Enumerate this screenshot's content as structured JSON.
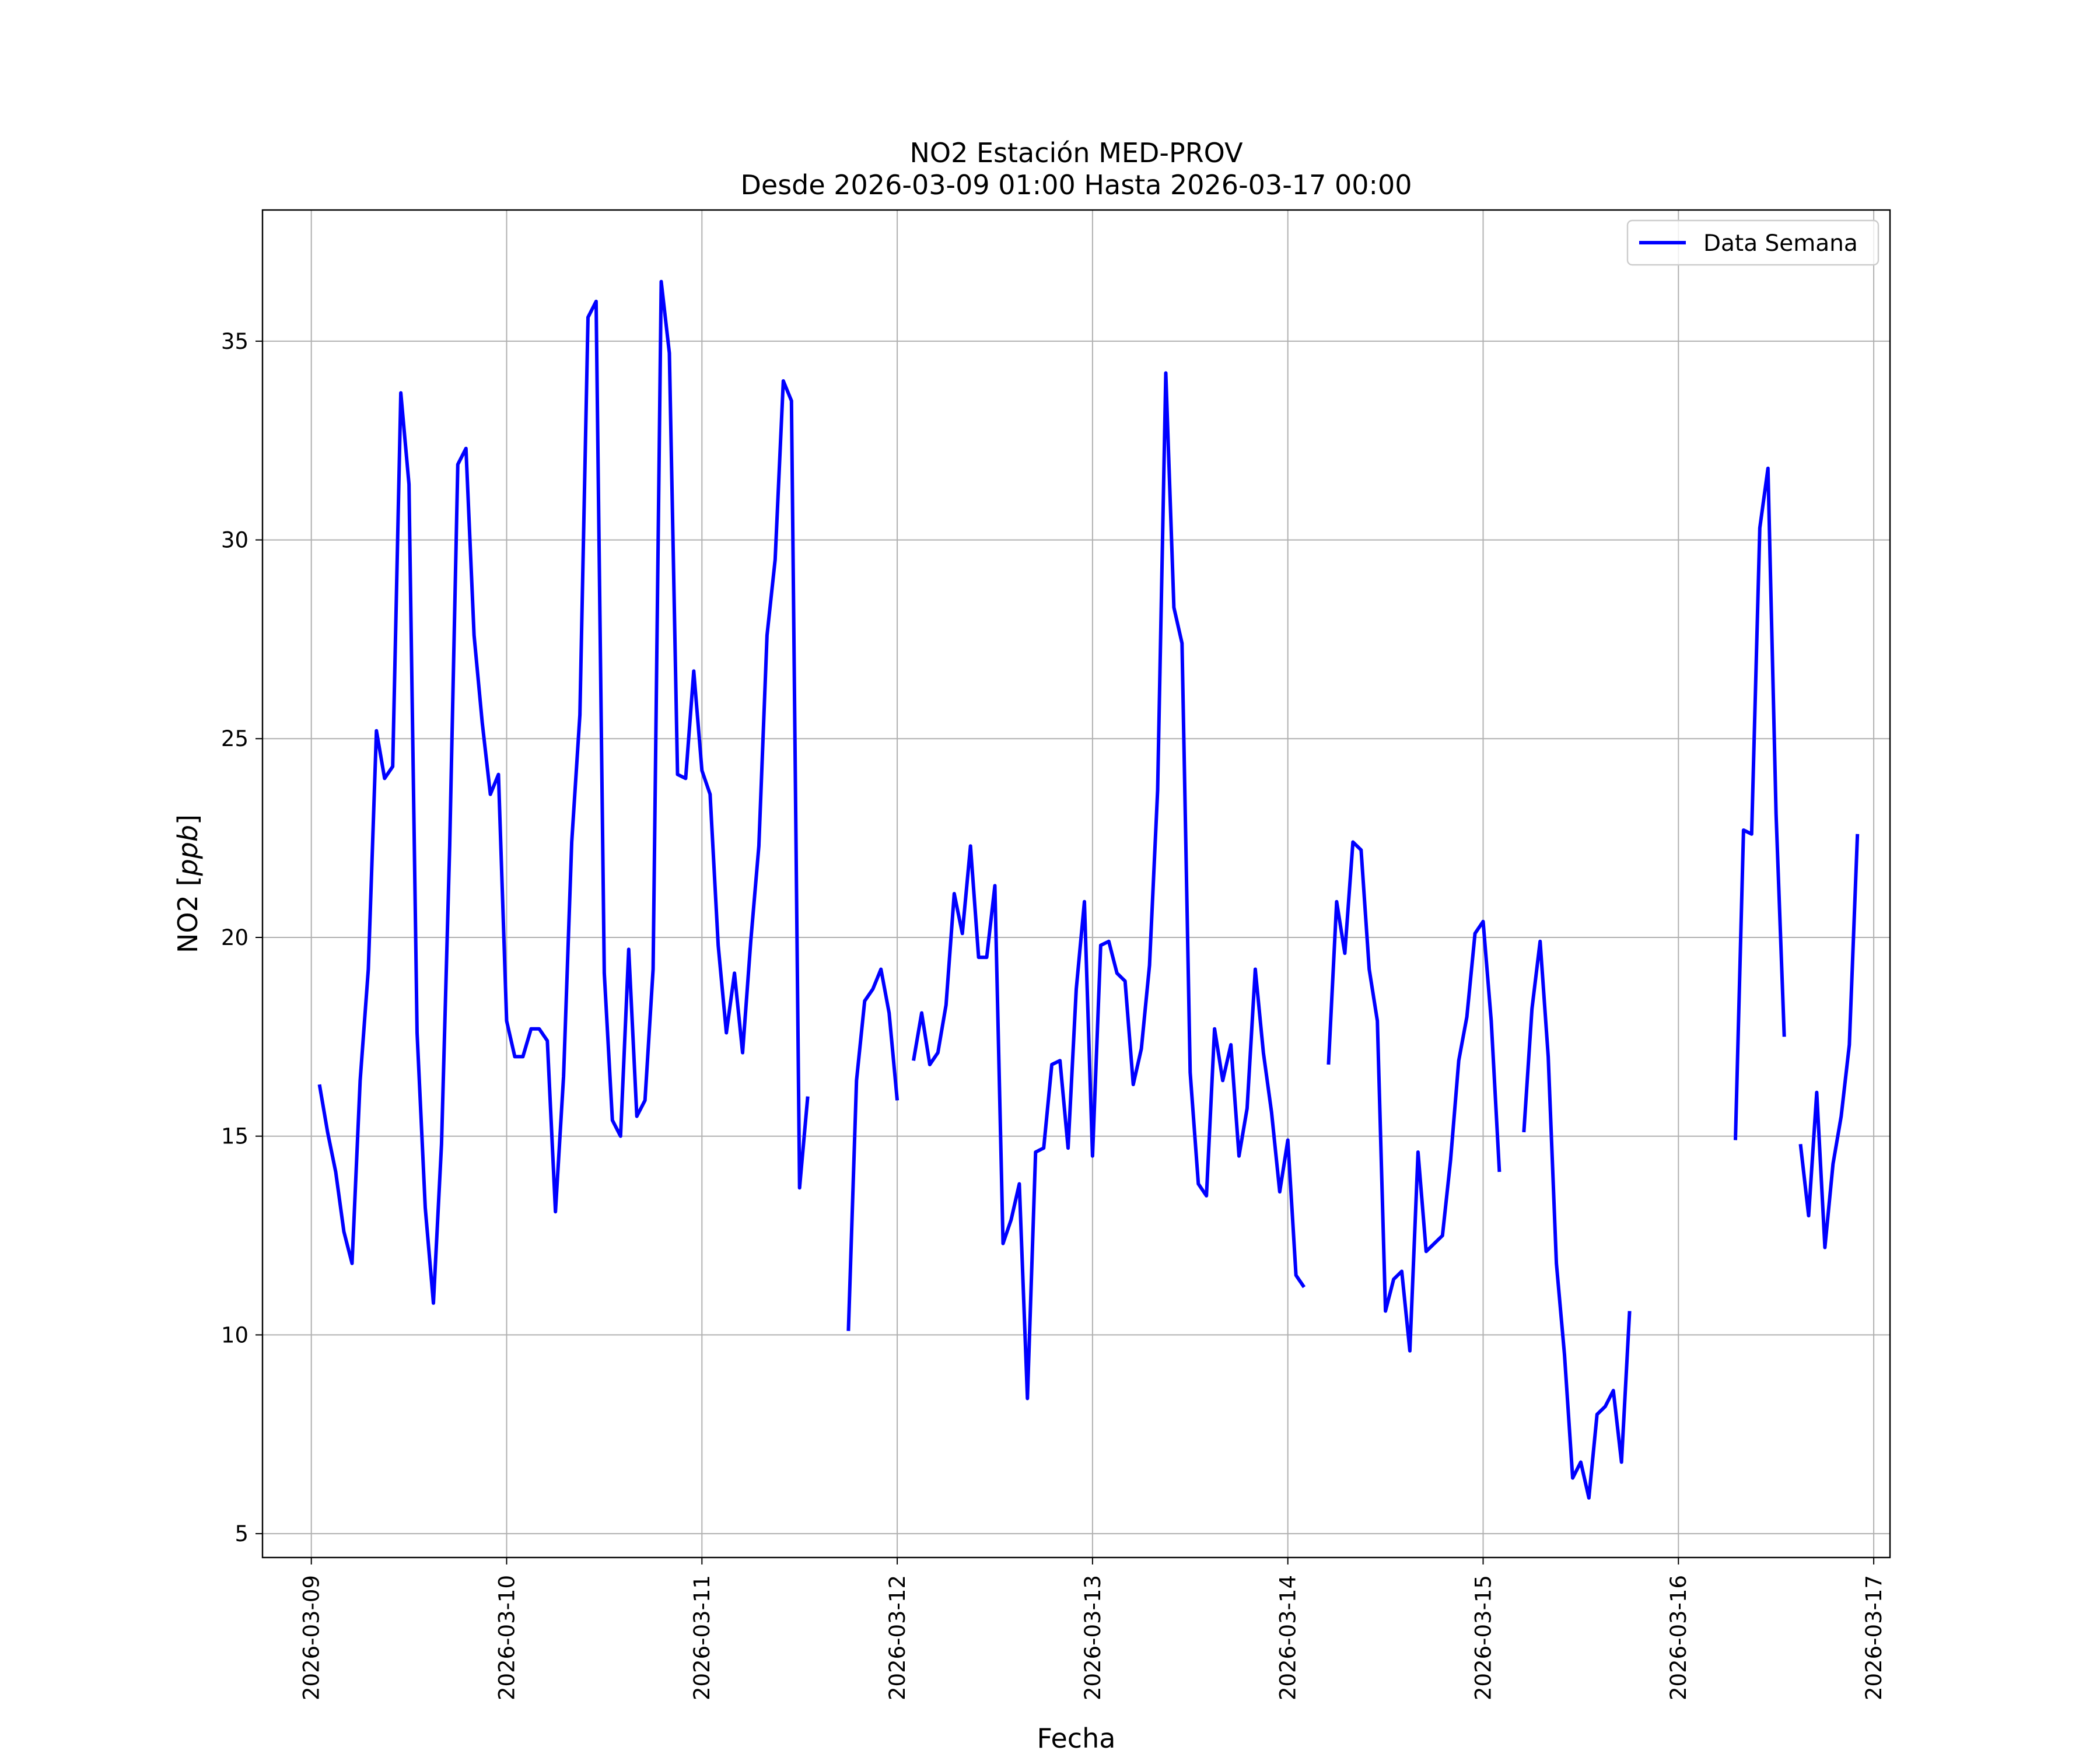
{
  "chart_data": {
    "type": "line",
    "title": "NO2 Estación MED-PROV",
    "subtitle": "Desde 2026-03-09 01:00 Hasta 2026-03-17 00:00",
    "xlabel": "Fecha",
    "ylabel": "NO2",
    "ylabel_unit": "ppb",
    "xlim": [
      "2026-03-08 18:00",
      "2026-03-17 02:00"
    ],
    "ylim": [
      4.4,
      38.3
    ],
    "x_ticks": [
      "2026-03-09",
      "2026-03-10",
      "2026-03-11",
      "2026-03-12",
      "2026-03-13",
      "2026-03-14",
      "2026-03-15",
      "2026-03-16",
      "2026-03-17"
    ],
    "y_ticks": [
      5,
      10,
      15,
      20,
      25,
      30,
      35
    ],
    "grid": true,
    "legend_position": "top-right",
    "series": [
      {
        "name": "Data Semana",
        "color": "#0000ff",
        "start": "2026-03-09 01:00",
        "step_hours": 1,
        "values": [
          16.3,
          15.1,
          14.1,
          12.6,
          11.8,
          16.4,
          19.2,
          25.2,
          24.0,
          24.3,
          33.7,
          31.4,
          17.6,
          13.2,
          10.8,
          14.8,
          22.3,
          31.9,
          32.3,
          27.6,
          25.4,
          23.6,
          24.1,
          17.9,
          17.0,
          17.0,
          17.7,
          17.7,
          17.4,
          13.1,
          16.5,
          22.4,
          25.6,
          35.6,
          36.0,
          19.1,
          15.4,
          15.0,
          19.7,
          15.5,
          15.9,
          19.2,
          36.5,
          34.7,
          24.1,
          24.0,
          26.7,
          24.2,
          23.6,
          19.8,
          17.6,
          19.1,
          17.1,
          19.9,
          22.3,
          27.6,
          29.5,
          34.0,
          33.5,
          13.7,
          16.0,
          null,
          null,
          null,
          null,
          10.1,
          16.4,
          18.4,
          18.7,
          19.2,
          18.1,
          15.9,
          null,
          16.9,
          18.1,
          16.8,
          17.1,
          18.3,
          21.1,
          20.1,
          22.3,
          19.5,
          19.5,
          21.3,
          12.3,
          12.9,
          13.8,
          8.4,
          14.6,
          14.7,
          16.8,
          16.9,
          14.7,
          18.7,
          20.9,
          14.5,
          19.8,
          19.9,
          19.1,
          18.9,
          16.3,
          17.2,
          19.3,
          23.7,
          34.2,
          28.3,
          27.4,
          16.6,
          13.8,
          13.5,
          17.7,
          16.4,
          17.3,
          14.5,
          15.7,
          19.2,
          17.1,
          15.6,
          13.6,
          14.9,
          11.5,
          11.2,
          null,
          null,
          16.8,
          20.9,
          19.6,
          22.4,
          22.2,
          19.2,
          17.9,
          10.6,
          11.4,
          11.6,
          9.6,
          14.6,
          12.1,
          12.3,
          12.5,
          14.4,
          16.9,
          18.0,
          20.1,
          20.4,
          17.9,
          14.1,
          null,
          null,
          15.1,
          18.2,
          19.9,
          17.0,
          11.8,
          9.5,
          6.4,
          6.8,
          5.9,
          8.0,
          8.2,
          8.6,
          6.8,
          10.6,
          null,
          null,
          null,
          null,
          null,
          null,
          null,
          null,
          null,
          null,
          null,
          null,
          14.9,
          22.7,
          22.6,
          30.3,
          31.8,
          23.1,
          17.5,
          null,
          14.8,
          13.0,
          16.1,
          12.2,
          14.3,
          15.5,
          17.3,
          22.6
        ]
      }
    ]
  }
}
